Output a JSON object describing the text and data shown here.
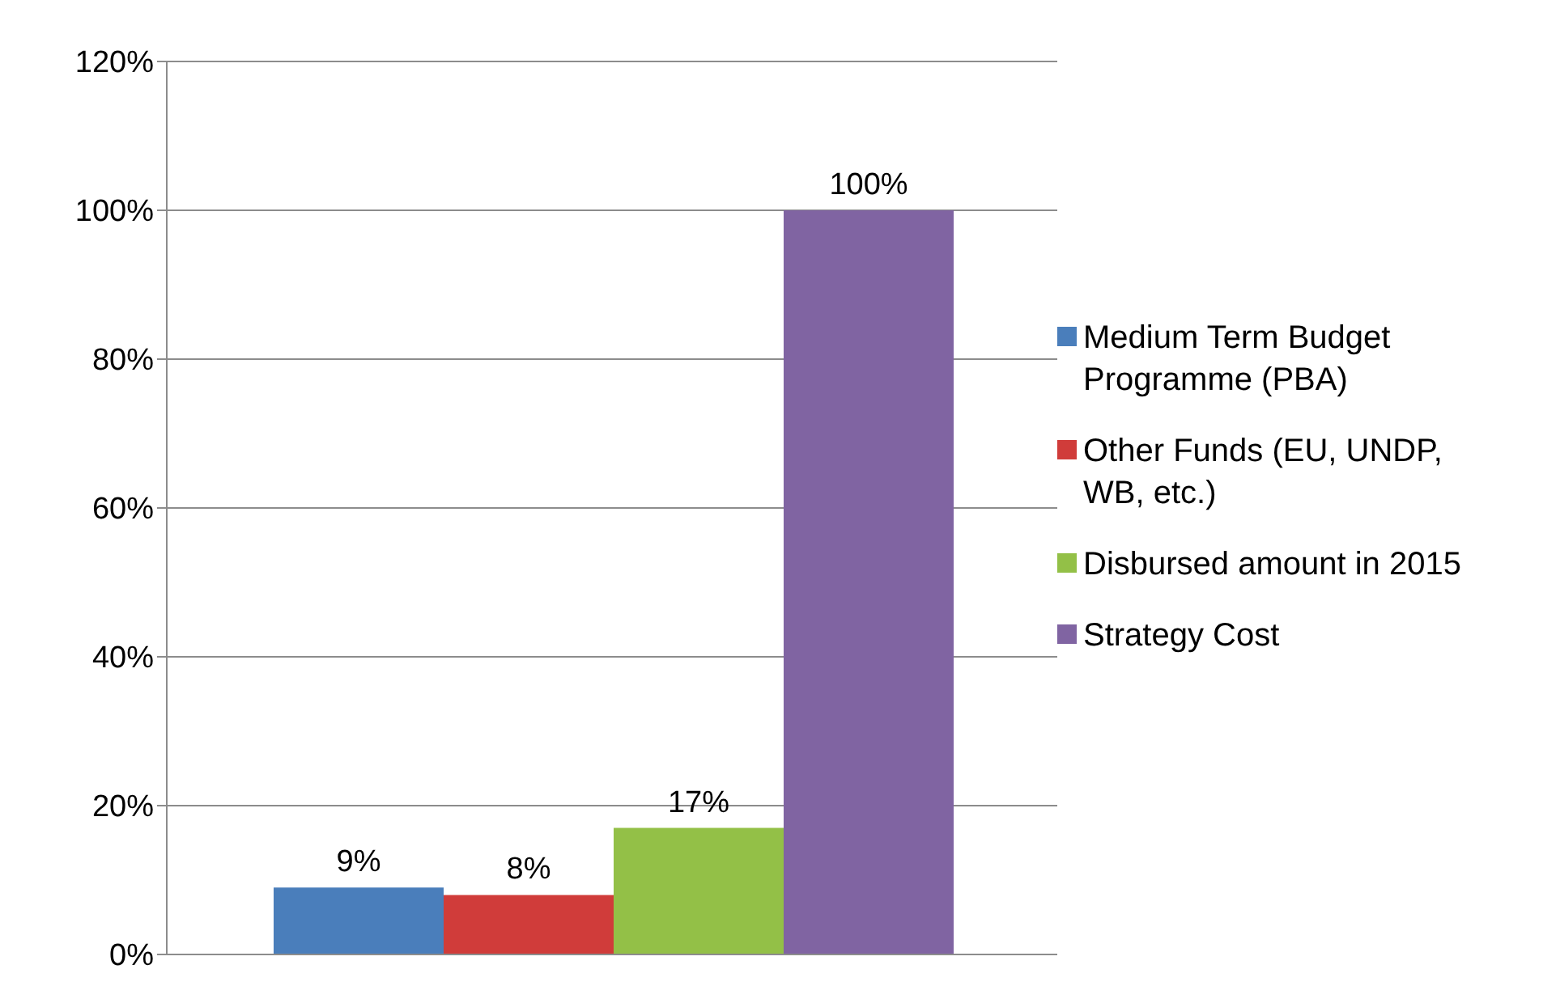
{
  "chart_data": {
    "type": "bar",
    "categories": [
      null
    ],
    "series": [
      {
        "name": "Medium Term Budget Programme (PBA)",
        "color": "#4a7ebb",
        "values": [
          9
        ],
        "value_labels": [
          "9%"
        ]
      },
      {
        "name": "Other Funds (EU, UNDP, WB, etc.)",
        "color": "#d03c3a",
        "values": [
          8
        ],
        "value_labels": [
          "8%"
        ]
      },
      {
        "name": "Disbursed amount in 2015",
        "color": "#93c047",
        "values": [
          17
        ],
        "value_labels": [
          "17%"
        ]
      },
      {
        "name": "Strategy Cost",
        "color": "#8064a2",
        "values": [
          100
        ],
        "value_labels": [
          "100%"
        ]
      }
    ],
    "ylim": [
      0,
      120
    ],
    "yticks": [
      {
        "value": 0,
        "label": "0%"
      },
      {
        "value": 20,
        "label": "20%"
      },
      {
        "value": 40,
        "label": "40%"
      },
      {
        "value": 60,
        "label": "60%"
      },
      {
        "value": 80,
        "label": "80%"
      },
      {
        "value": 100,
        "label": "100%"
      },
      {
        "value": 120,
        "label": "120%"
      }
    ],
    "grid": "y",
    "legend": "right"
  }
}
